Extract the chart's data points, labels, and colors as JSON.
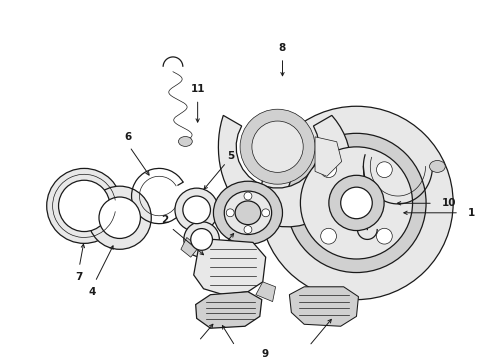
{
  "background_color": "#ffffff",
  "figure_width": 4.9,
  "figure_height": 3.6,
  "dpi": 100,
  "line_color": "#1a1a1a",
  "fill_light": "#e8e8e8",
  "fill_mid": "#d0d0d0",
  "fill_dark": "#b8b8b8",
  "lw_main": 0.9,
  "lw_thin": 0.5,
  "font_size": 7.5
}
